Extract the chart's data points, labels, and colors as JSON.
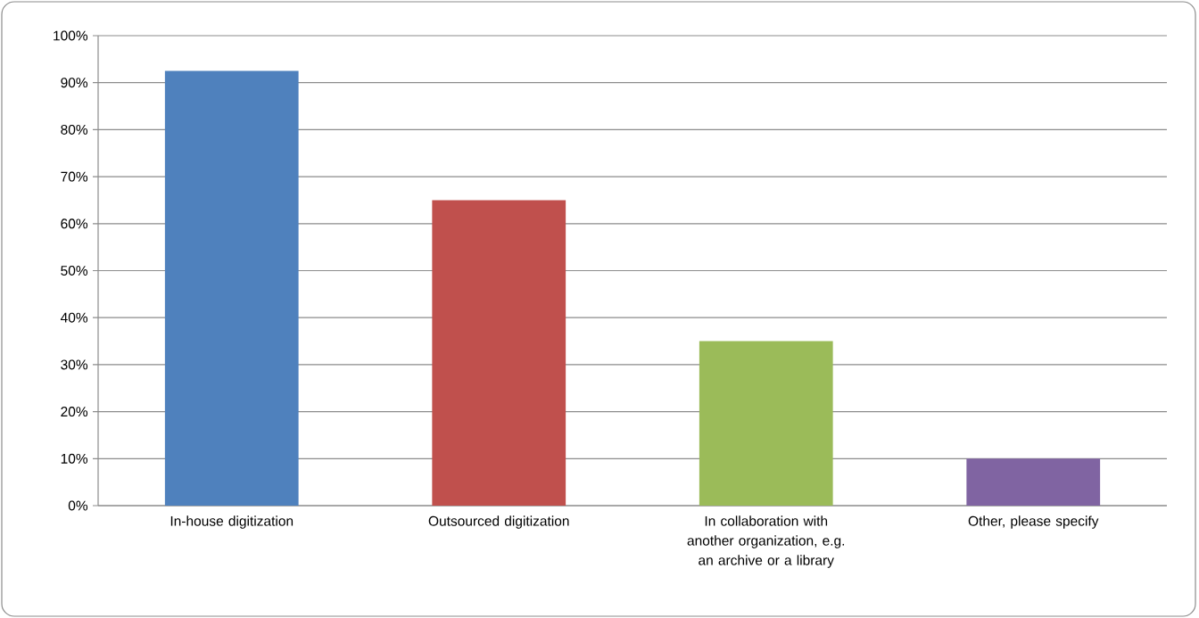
{
  "chart_data": {
    "type": "bar",
    "categories": [
      "In-house digitization",
      "Outsourced digitization",
      "In collaboration with another organization, e.g. an archive or a library",
      "Other, please specify"
    ],
    "values": [
      92.5,
      65,
      35,
      10
    ],
    "colors": [
      "#4f81bd",
      "#c0504d",
      "#9bbb59",
      "#8064a2"
    ],
    "ylim": [
      0,
      100
    ],
    "yticks": [
      {
        "value": 0,
        "label": "0%"
      },
      {
        "value": 10,
        "label": "10%"
      },
      {
        "value": 20,
        "label": "20%"
      },
      {
        "value": 30,
        "label": "30%"
      },
      {
        "value": 40,
        "label": "40%"
      },
      {
        "value": 50,
        "label": "50%"
      },
      {
        "value": 60,
        "label": "60%"
      },
      {
        "value": 70,
        "label": "70%"
      },
      {
        "value": 80,
        "label": "80%"
      },
      {
        "value": 90,
        "label": "90%"
      },
      {
        "value": 100,
        "label": "100%"
      }
    ],
    "grid": "y"
  }
}
